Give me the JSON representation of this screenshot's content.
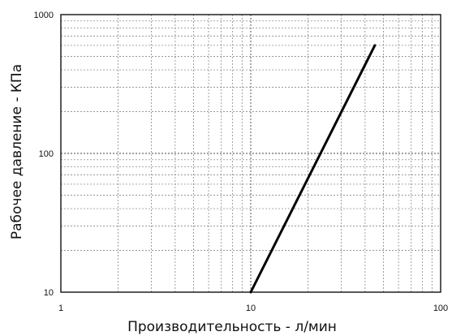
{
  "chart_data": {
    "type": "line",
    "xlabel": "Производительность - л/мин",
    "ylabel": "Рабочее давление - КПа",
    "x_scale": "log",
    "y_scale": "log",
    "xlim": [
      1,
      100
    ],
    "ylim": [
      10,
      1000
    ],
    "x_ticks": [
      "1",
      "10",
      "100"
    ],
    "y_ticks": [
      "10",
      "100",
      "1000"
    ],
    "grid": true,
    "series": [
      {
        "x": [
          10,
          45
        ],
        "y": [
          10,
          600
        ]
      }
    ]
  }
}
